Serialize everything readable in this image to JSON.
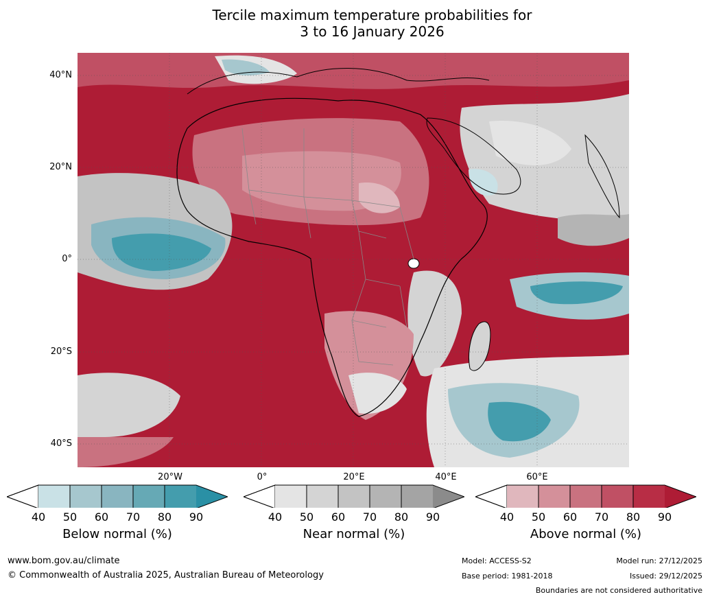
{
  "title": {
    "line1": "Tercile maximum temperature probabilities for",
    "line2": "3 to 16 January 2026"
  },
  "map": {
    "latitude_labels": [
      "40°N",
      "20°N",
      "0°",
      "20°S",
      "40°S"
    ],
    "longitude_labels": [
      "20°W",
      "0°",
      "20°E",
      "40°E",
      "60°E"
    ],
    "colors": {
      "above": [
        "#e0b7bd",
        "#d4909a",
        "#c97280",
        "#c05064",
        "#b82d45",
        "#ae1c35"
      ],
      "near": [
        "#e4e4e4",
        "#d4d4d4",
        "#c3c3c3",
        "#b4b4b4",
        "#a4a4a4",
        "#8b8b8b"
      ],
      "below": [
        "#c9e1e6",
        "#a6c7ce",
        "#89b5c0",
        "#66a9b5",
        "#449dad",
        "#2a90a5"
      ],
      "ocean_bg": "#ae1c35"
    }
  },
  "legends": [
    {
      "name": "below",
      "title": "Below normal (%)",
      "ticks": [
        "40",
        "50",
        "60",
        "70",
        "80",
        "90"
      ],
      "colors": [
        "#c9e1e6",
        "#a6c7ce",
        "#89b5c0",
        "#66a9b5",
        "#449dad"
      ],
      "arrow": "#2a90a5"
    },
    {
      "name": "near",
      "title": "Near normal (%)",
      "ticks": [
        "40",
        "50",
        "60",
        "70",
        "80",
        "90"
      ],
      "colors": [
        "#e4e4e4",
        "#d4d4d4",
        "#c3c3c3",
        "#b4b4b4",
        "#a4a4a4"
      ],
      "arrow": "#8b8b8b"
    },
    {
      "name": "above",
      "title": "Above normal (%)",
      "ticks": [
        "40",
        "50",
        "60",
        "70",
        "80",
        "90"
      ],
      "colors": [
        "#e0b7bd",
        "#d4909a",
        "#c97280",
        "#c05064",
        "#b82d45"
      ],
      "arrow": "#ae1c35"
    }
  ],
  "footer": {
    "website": "www.bom.gov.au/climate",
    "copyright": "© Commonwealth of Australia 2025, Australian Bureau of Meteorology",
    "model": "Model: ACCESS-S2",
    "base_period": "Base period: 1981-2018",
    "model_run": "Model run: 27/12/2025",
    "issued": "Issued: 29/12/2025",
    "disclaimer": "Boundaries are not considered authoritative"
  }
}
